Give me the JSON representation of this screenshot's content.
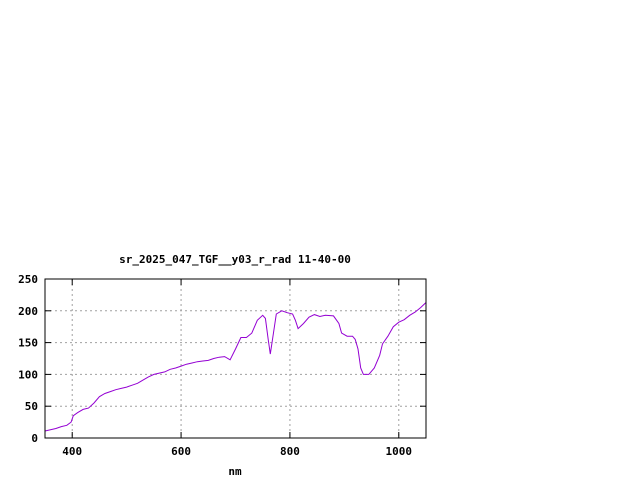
{
  "chart_data": {
    "type": "line",
    "title": "sr_2025_047_TGF__y03_r_rad 11-40-00",
    "xlabel": "nm",
    "ylabel": "",
    "xlim": [
      350,
      1050
    ],
    "ylim": [
      0,
      250
    ],
    "xticks": [
      400,
      600,
      800,
      1000
    ],
    "yticks": [
      0,
      50,
      100,
      150,
      200,
      250
    ],
    "grid": true,
    "line_color": "#9400d3",
    "series": [
      {
        "values": [
          [
            350,
            11
          ],
          [
            370,
            15
          ],
          [
            380,
            18
          ],
          [
            390,
            20
          ],
          [
            398,
            25
          ],
          [
            402,
            35
          ],
          [
            410,
            40
          ],
          [
            420,
            45
          ],
          [
            430,
            47
          ],
          [
            440,
            55
          ],
          [
            450,
            65
          ],
          [
            460,
            70
          ],
          [
            470,
            73
          ],
          [
            480,
            76
          ],
          [
            490,
            78
          ],
          [
            500,
            80
          ],
          [
            510,
            83
          ],
          [
            520,
            86
          ],
          [
            530,
            91
          ],
          [
            540,
            96
          ],
          [
            550,
            100
          ],
          [
            560,
            102
          ],
          [
            570,
            104
          ],
          [
            580,
            108
          ],
          [
            590,
            110
          ],
          [
            600,
            113
          ],
          [
            610,
            116
          ],
          [
            620,
            118
          ],
          [
            630,
            120
          ],
          [
            640,
            121
          ],
          [
            650,
            122
          ],
          [
            660,
            125
          ],
          [
            670,
            127
          ],
          [
            680,
            128
          ],
          [
            690,
            123
          ],
          [
            700,
            140
          ],
          [
            710,
            158
          ],
          [
            720,
            158
          ],
          [
            730,
            165
          ],
          [
            740,
            185
          ],
          [
            750,
            193
          ],
          [
            755,
            188
          ],
          [
            760,
            155
          ],
          [
            764,
            132
          ],
          [
            768,
            155
          ],
          [
            775,
            195
          ],
          [
            785,
            200
          ],
          [
            795,
            197
          ],
          [
            805,
            195
          ],
          [
            810,
            185
          ],
          [
            815,
            172
          ],
          [
            825,
            180
          ],
          [
            835,
            190
          ],
          [
            845,
            194
          ],
          [
            855,
            191
          ],
          [
            865,
            193
          ],
          [
            880,
            192
          ],
          [
            890,
            180
          ],
          [
            895,
            165
          ],
          [
            905,
            160
          ],
          [
            915,
            160
          ],
          [
            920,
            155
          ],
          [
            925,
            140
          ],
          [
            930,
            110
          ],
          [
            935,
            100
          ],
          [
            945,
            100
          ],
          [
            955,
            110
          ],
          [
            965,
            130
          ],
          [
            970,
            148
          ],
          [
            980,
            160
          ],
          [
            990,
            175
          ],
          [
            1000,
            182
          ],
          [
            1010,
            186
          ],
          [
            1020,
            193
          ],
          [
            1030,
            198
          ],
          [
            1040,
            205
          ],
          [
            1050,
            213
          ]
        ]
      }
    ]
  }
}
